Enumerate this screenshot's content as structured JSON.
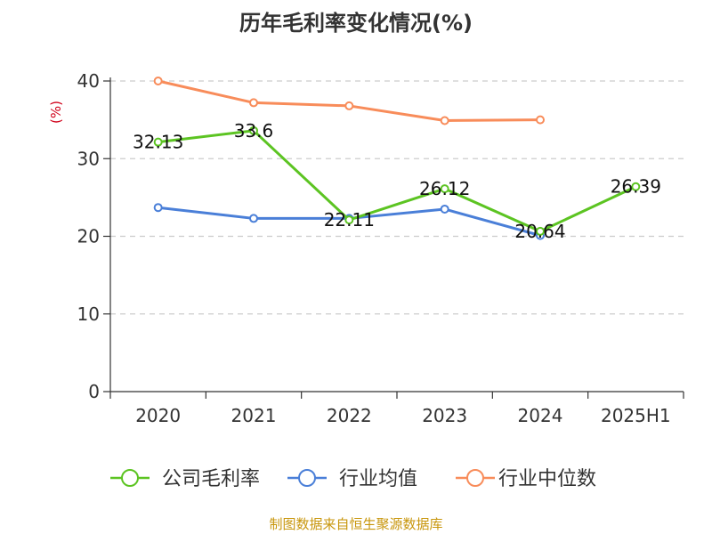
{
  "chart_data": {
    "type": "line",
    "title": "历年毛利率变化情况(%)",
    "ylabel": "(%)",
    "xlabel": "",
    "categories": [
      "2020",
      "2021",
      "2022",
      "2023",
      "2024",
      "2025H1"
    ],
    "ylim": [
      0,
      40
    ],
    "yticks": [
      0,
      10,
      20,
      30,
      40
    ],
    "grid": true,
    "legend_position": "bottom",
    "series": [
      {
        "name": "公司毛利率",
        "color": "#5cc422",
        "values": [
          32.13,
          33.6,
          22.11,
          26.12,
          20.64,
          26.39
        ],
        "labels": [
          "32.13",
          "33.6",
          "22.11",
          "26.12",
          "20.64",
          "26.39"
        ],
        "show_labels": true
      },
      {
        "name": "行业均值",
        "color": "#4a7fd8",
        "values": [
          23.7,
          22.3,
          22.3,
          23.5,
          20.1,
          null
        ],
        "show_labels": false
      },
      {
        "name": "行业中位数",
        "color": "#f88c5a",
        "values": [
          40.0,
          37.2,
          36.8,
          34.9,
          35.0,
          null
        ],
        "show_labels": false
      }
    ],
    "ylabel_color": "#d0021b"
  },
  "source": "制图数据来自恒生聚源数据库"
}
